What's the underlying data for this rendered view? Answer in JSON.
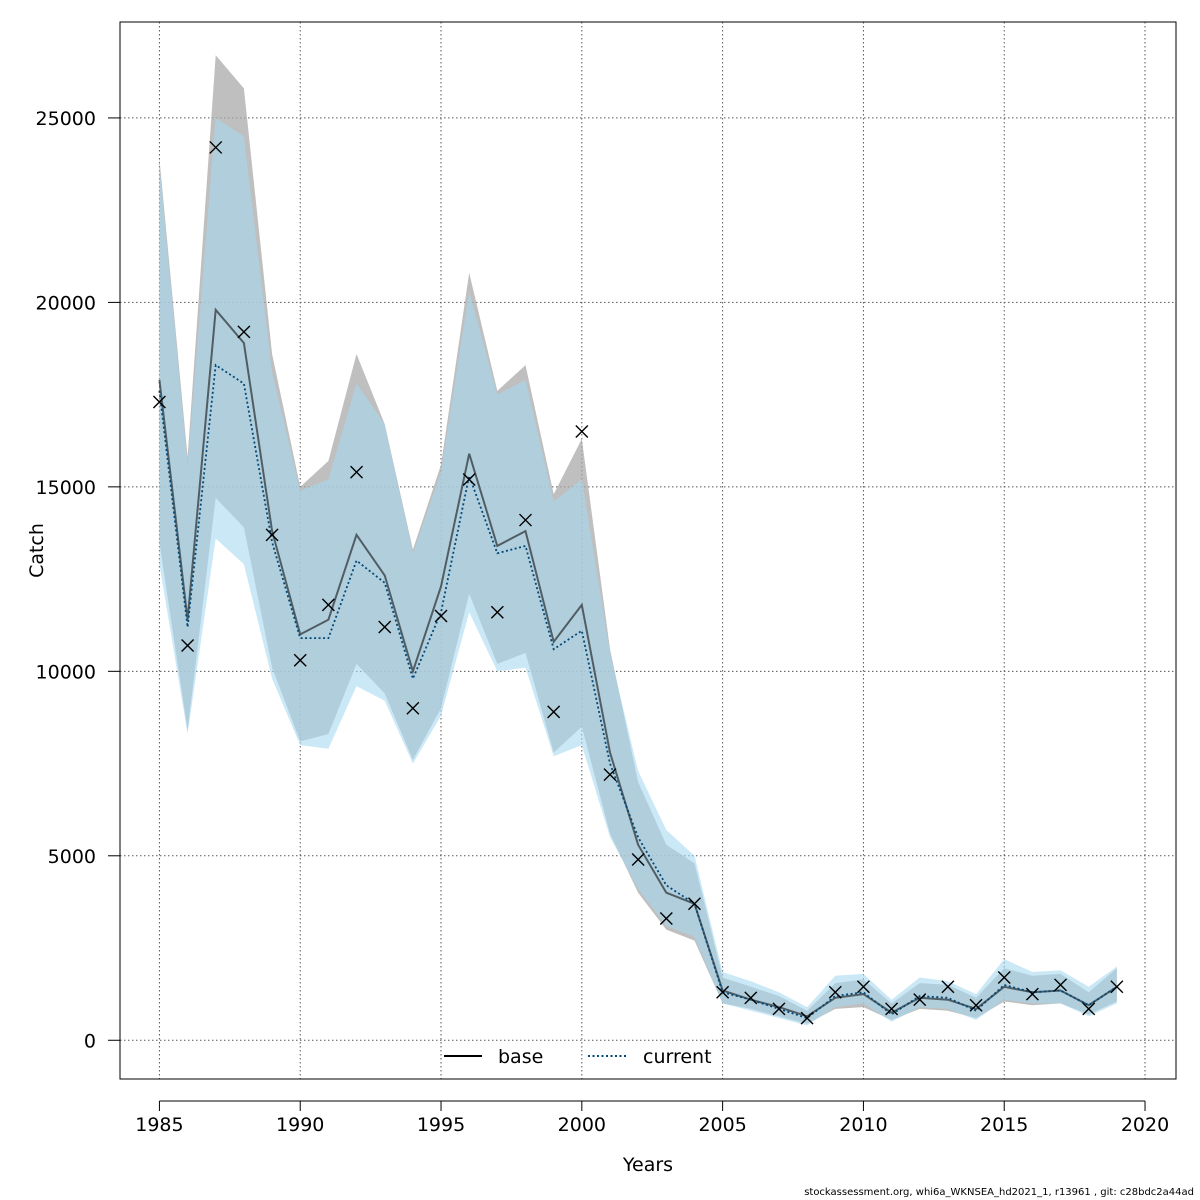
{
  "chart_data": {
    "type": "line",
    "xlabel": "Years",
    "ylabel": "Catch",
    "xlim": [
      1983.6,
      2021.1
    ],
    "ylim": [
      -1050,
      27600
    ],
    "xticks": [
      1985,
      1990,
      1995,
      2000,
      2005,
      2010,
      2015,
      2020
    ],
    "yticks": [
      0,
      5000,
      10000,
      15000,
      20000,
      25000
    ],
    "grid": true,
    "legend_position": "bottom-center",
    "legend": [
      {
        "label": "base",
        "style": "solid",
        "color": "#000000"
      },
      {
        "label": "current",
        "style": "dotted",
        "color": "#00497a"
      }
    ],
    "x": [
      1985,
      1986,
      1987,
      1988,
      1989,
      1990,
      1991,
      1992,
      1993,
      1994,
      1995,
      1996,
      1997,
      1998,
      1999,
      2000,
      2001,
      2002,
      2003,
      2004,
      2005,
      2006,
      2007,
      2008,
      2009,
      2010,
      2011,
      2012,
      2013,
      2014,
      2015,
      2016,
      2017,
      2018,
      2019
    ],
    "series": [
      {
        "name": "base",
        "color": "#000000",
        "band_color": "#aaaaaa",
        "values": [
          17900,
          11400,
          19800,
          18900,
          13800,
          11000,
          11400,
          13700,
          12600,
          10000,
          12300,
          15900,
          13400,
          13800,
          10800,
          11800,
          7800,
          5300,
          4000,
          3700,
          1350,
          1100,
          900,
          650,
          1150,
          1250,
          750,
          1150,
          1100,
          850,
          1450,
          1300,
          1350,
          950,
          1450
        ],
        "lower": [
          13500,
          8400,
          14700,
          13900,
          10100,
          8100,
          8300,
          10200,
          9400,
          7600,
          9000,
          12100,
          10200,
          10500,
          7800,
          8500,
          5600,
          4000,
          3000,
          2700,
          1000,
          850,
          650,
          450,
          850,
          900,
          550,
          850,
          800,
          600,
          1050,
          950,
          1000,
          700,
          1050
        ],
        "upper": [
          23900,
          15800,
          26700,
          25800,
          18600,
          15000,
          15700,
          18600,
          16700,
          13300,
          15600,
          20800,
          17600,
          18300,
          14800,
          16300,
          10600,
          7000,
          5300,
          4800,
          1700,
          1450,
          1200,
          800,
          1550,
          1650,
          1000,
          1550,
          1500,
          1150,
          1950,
          1750,
          1800,
          1300,
          1950
        ]
      },
      {
        "name": "current",
        "color": "#00497a",
        "band_color": "#a8d8f0",
        "values": [
          17600,
          11200,
          18300,
          17800,
          13500,
          10900,
          10900,
          13000,
          12400,
          9800,
          11600,
          15300,
          13200,
          13400,
          10600,
          11100,
          7500,
          5500,
          4200,
          3700,
          1300,
          1100,
          850,
          600,
          1200,
          1300,
          700,
          1200,
          1150,
          800,
          1500,
          1300,
          1350,
          950,
          1450
        ],
        "lower": [
          12900,
          8300,
          13600,
          12900,
          9800,
          8000,
          7900,
          9600,
          9200,
          7500,
          8800,
          11600,
          10000,
          10100,
          7700,
          8000,
          5500,
          4100,
          3100,
          2800,
          1000,
          800,
          600,
          400,
          900,
          1000,
          500,
          900,
          850,
          550,
          1100,
          1000,
          1000,
          650,
          1000
        ],
        "upper": [
          23700,
          15600,
          25000,
          24500,
          18100,
          14900,
          15200,
          17800,
          16700,
          13200,
          15400,
          20300,
          17500,
          17900,
          14600,
          15200,
          10500,
          7300,
          5700,
          5000,
          1850,
          1600,
          1300,
          900,
          1750,
          1800,
          1100,
          1700,
          1600,
          1250,
          2200,
          1850,
          1900,
          1450,
          2000
        ]
      }
    ],
    "observations": {
      "marker": "x",
      "values": [
        17300,
        10700,
        24200,
        19200,
        13700,
        10300,
        11800,
        15400,
        11200,
        9000,
        11500,
        15200,
        11600,
        14100,
        8900,
        16500,
        7200,
        4900,
        3300,
        3700,
        1300,
        1150,
        850,
        600,
        1300,
        1450,
        850,
        1100,
        1450,
        950,
        1700,
        1250,
        1500,
        850,
        1450
      ]
    }
  },
  "footer_text": "stockassessment.org, whi6a_WKNSEA_hd2021_1, r13961 , git: c28bdc2a44ad"
}
